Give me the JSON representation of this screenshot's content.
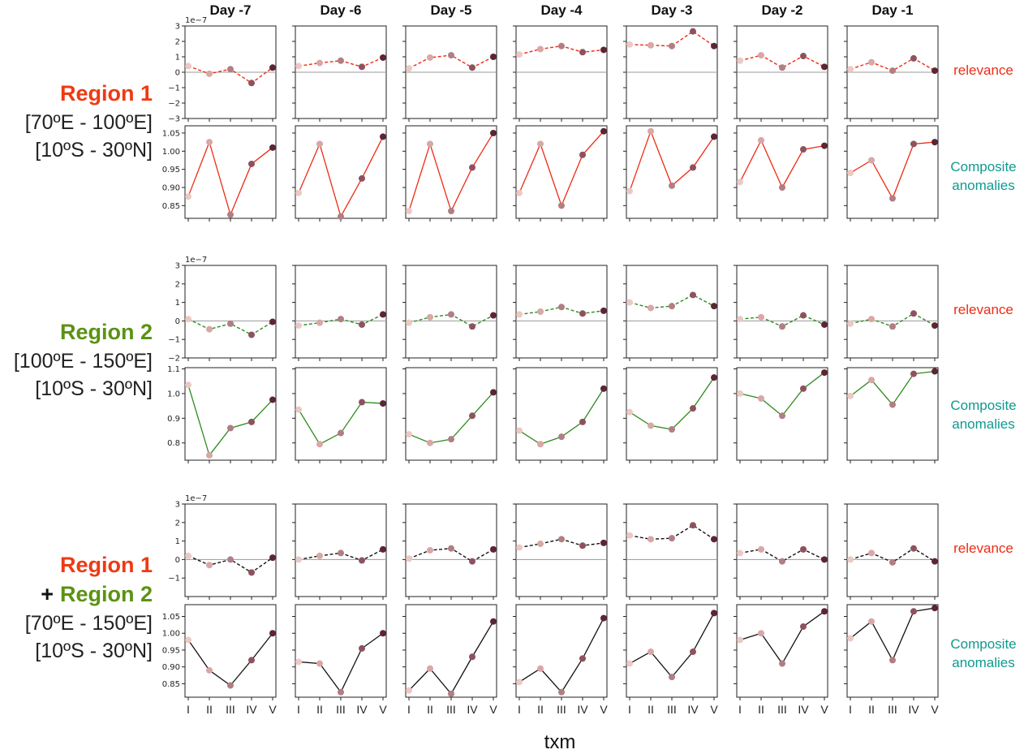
{
  "figure": {
    "days": [
      "Day -7",
      "Day -6",
      "Day -5",
      "Day -4",
      "Day -3",
      "Day -2",
      "Day -1"
    ],
    "phases": [
      "I",
      "II",
      "III",
      "IV",
      "V"
    ],
    "xlabel": "txm",
    "relevance_label": "relevance",
    "anomalies_label_line1": "Composite",
    "anomalies_label_line2": "anomalies",
    "exponent_label": "1e−7",
    "colors": {
      "region1": "#ee2b14",
      "region2": "#2e8b1e",
      "combined": "#111111",
      "relevance_text": "#ee2b14",
      "anomalies_text": "#0e9a90",
      "region1_title": "#ee3a13",
      "region2_title": "#5b9213",
      "marker_shades": [
        "#ecc9c4",
        "#d8a7a6",
        "#b07e84",
        "#8e525f",
        "#5c2535"
      ]
    }
  },
  "regions": [
    {
      "title": "Region 1",
      "line2": "[70ºE - 100ºE]",
      "line3": "[10ºS - 30ºN]"
    },
    {
      "title": "Region 2",
      "line2": "[100ºE - 150ºE]",
      "line3": "[10ºS - 30ºN]"
    },
    {
      "title1": "Region 1",
      "plus": "+",
      "title2": "Region 2",
      "line3": "[70ºE - 150ºE]",
      "line4": "[10ºS - 30ºN]"
    }
  ],
  "chart_data": [
    {
      "type": "line",
      "group": "Region 1",
      "panel": "relevance",
      "ylim": [
        -3,
        3
      ],
      "yticks": [
        "−3",
        "−2",
        "−1",
        "0",
        "1",
        "2",
        "3"
      ],
      "ytick_values": [
        -3,
        -2,
        -1,
        0,
        1,
        2,
        3
      ],
      "y_multiplier": "1e-7",
      "line_style": "dashed",
      "color": "#ee2b14",
      "categories": [
        "I",
        "II",
        "III",
        "IV",
        "V"
      ],
      "series": [
        {
          "values": [
            0.4,
            -0.1,
            0.2,
            -0.7,
            0.3
          ]
        },
        {
          "values": [
            0.4,
            0.6,
            0.75,
            0.35,
            0.95
          ]
        },
        {
          "values": [
            0.25,
            0.95,
            1.1,
            0.3,
            1.0
          ]
        },
        {
          "values": [
            1.15,
            1.5,
            1.7,
            1.3,
            1.45
          ]
        },
        {
          "values": [
            1.8,
            1.75,
            1.7,
            2.65,
            1.7
          ]
        },
        {
          "values": [
            0.75,
            1.1,
            0.3,
            1.05,
            0.35
          ]
        },
        {
          "values": [
            0.2,
            0.65,
            0.1,
            0.9,
            0.1
          ]
        }
      ]
    },
    {
      "type": "line",
      "group": "Region 1",
      "panel": "composite anomalies",
      "ylim": [
        0.815,
        1.07
      ],
      "yticks": [
        "0.85",
        "0.90",
        "0.95",
        "1.00",
        "1.05"
      ],
      "ytick_values": [
        0.85,
        0.9,
        0.95,
        1.0,
        1.05
      ],
      "line_style": "solid",
      "color": "#ee2b14",
      "categories": [
        "I",
        "II",
        "III",
        "IV",
        "V"
      ],
      "series": [
        {
          "values": [
            0.875,
            1.025,
            0.825,
            0.965,
            1.01
          ]
        },
        {
          "values": [
            0.885,
            1.02,
            0.82,
            0.925,
            1.04
          ]
        },
        {
          "values": [
            0.835,
            1.02,
            0.835,
            0.955,
            1.05
          ]
        },
        {
          "values": [
            0.885,
            1.02,
            0.85,
            0.99,
            1.055
          ]
        },
        {
          "values": [
            0.89,
            1.055,
            0.905,
            0.955,
            1.04
          ]
        },
        {
          "values": [
            0.915,
            1.03,
            0.9,
            1.005,
            1.015
          ]
        },
        {
          "values": [
            0.94,
            0.975,
            0.87,
            1.02,
            1.025
          ]
        }
      ]
    },
    {
      "type": "line",
      "group": "Region 2",
      "panel": "relevance",
      "ylim": [
        -2,
        3
      ],
      "yticks": [
        "−2",
        "−1",
        "0",
        "1",
        "2",
        "3"
      ],
      "ytick_values": [
        -2,
        -1,
        0,
        1,
        2,
        3
      ],
      "y_multiplier": "1e-7",
      "line_style": "dashed",
      "color": "#2e8b1e",
      "categories": [
        "I",
        "II",
        "III",
        "IV",
        "V"
      ],
      "series": [
        {
          "values": [
            0.1,
            -0.45,
            -0.15,
            -0.75,
            -0.05
          ]
        },
        {
          "values": [
            -0.25,
            -0.1,
            0.1,
            -0.2,
            0.35
          ]
        },
        {
          "values": [
            -0.1,
            0.2,
            0.35,
            -0.3,
            0.3
          ]
        },
        {
          "values": [
            0.35,
            0.5,
            0.75,
            0.4,
            0.55
          ]
        },
        {
          "values": [
            1.0,
            0.7,
            0.8,
            1.4,
            0.8
          ]
        },
        {
          "values": [
            0.1,
            0.2,
            -0.3,
            0.3,
            -0.2
          ]
        },
        {
          "values": [
            -0.15,
            0.1,
            -0.3,
            0.4,
            -0.25
          ]
        }
      ]
    },
    {
      "type": "line",
      "group": "Region 2",
      "panel": "composite anomalies",
      "ylim": [
        0.73,
        1.105
      ],
      "yticks": [
        "0.8",
        "0.9",
        "1.0",
        "1.1"
      ],
      "ytick_values": [
        0.8,
        0.9,
        1.0,
        1.1
      ],
      "line_style": "solid",
      "color": "#2e8b1e",
      "categories": [
        "I",
        "II",
        "III",
        "IV",
        "V"
      ],
      "series": [
        {
          "values": [
            1.035,
            0.75,
            0.86,
            0.885,
            0.975
          ]
        },
        {
          "values": [
            0.935,
            0.795,
            0.84,
            0.965,
            0.96
          ]
        },
        {
          "values": [
            0.835,
            0.8,
            0.815,
            0.91,
            1.005
          ]
        },
        {
          "values": [
            0.85,
            0.795,
            0.825,
            0.885,
            1.02
          ]
        },
        {
          "values": [
            0.925,
            0.87,
            0.855,
            0.94,
            1.065
          ]
        },
        {
          "values": [
            1.0,
            0.98,
            0.91,
            1.02,
            1.085
          ]
        },
        {
          "values": [
            0.99,
            1.055,
            0.955,
            1.08,
            1.09
          ]
        }
      ]
    },
    {
      "type": "line",
      "group": "Region 1 + Region 2",
      "panel": "relevance",
      "ylim": [
        -2,
        3
      ],
      "yticks": [
        "−1",
        "0",
        "1",
        "2",
        "3"
      ],
      "ytick_values": [
        -1,
        0,
        1,
        2,
        3
      ],
      "y_multiplier": "1e-7",
      "line_style": "dashed",
      "color": "#111111",
      "categories": [
        "I",
        "II",
        "III",
        "IV",
        "V"
      ],
      "series": [
        {
          "values": [
            0.2,
            -0.3,
            0.0,
            -0.7,
            0.1
          ]
        },
        {
          "values": [
            0.0,
            0.2,
            0.35,
            -0.05,
            0.55
          ]
        },
        {
          "values": [
            0.05,
            0.5,
            0.6,
            -0.1,
            0.55
          ]
        },
        {
          "values": [
            0.65,
            0.85,
            1.1,
            0.75,
            0.9
          ]
        },
        {
          "values": [
            1.3,
            1.1,
            1.15,
            1.85,
            1.1
          ]
        },
        {
          "values": [
            0.35,
            0.55,
            -0.1,
            0.55,
            0.0
          ]
        },
        {
          "values": [
            0.0,
            0.35,
            -0.15,
            0.6,
            -0.1
          ]
        }
      ]
    },
    {
      "type": "line",
      "group": "Region 1 + Region 2",
      "panel": "composite anomalies",
      "ylim": [
        0.81,
        1.085
      ],
      "yticks": [
        "0.85",
        "0.90",
        "0.95",
        "1.00",
        "1.05"
      ],
      "ytick_values": [
        0.85,
        0.9,
        0.95,
        1.0,
        1.05
      ],
      "line_style": "solid",
      "color": "#111111",
      "categories": [
        "I",
        "II",
        "III",
        "IV",
        "V"
      ],
      "series": [
        {
          "values": [
            0.98,
            0.89,
            0.845,
            0.92,
            1.0
          ]
        },
        {
          "values": [
            0.915,
            0.91,
            0.825,
            0.955,
            1.0
          ]
        },
        {
          "values": [
            0.83,
            0.895,
            0.82,
            0.93,
            1.035
          ]
        },
        {
          "values": [
            0.855,
            0.895,
            0.825,
            0.925,
            1.045
          ]
        },
        {
          "values": [
            0.91,
            0.945,
            0.87,
            0.945,
            1.06
          ]
        },
        {
          "values": [
            0.98,
            1.0,
            0.91,
            1.02,
            1.065
          ]
        },
        {
          "values": [
            0.985,
            1.035,
            0.92,
            1.065,
            1.075
          ]
        }
      ]
    }
  ]
}
